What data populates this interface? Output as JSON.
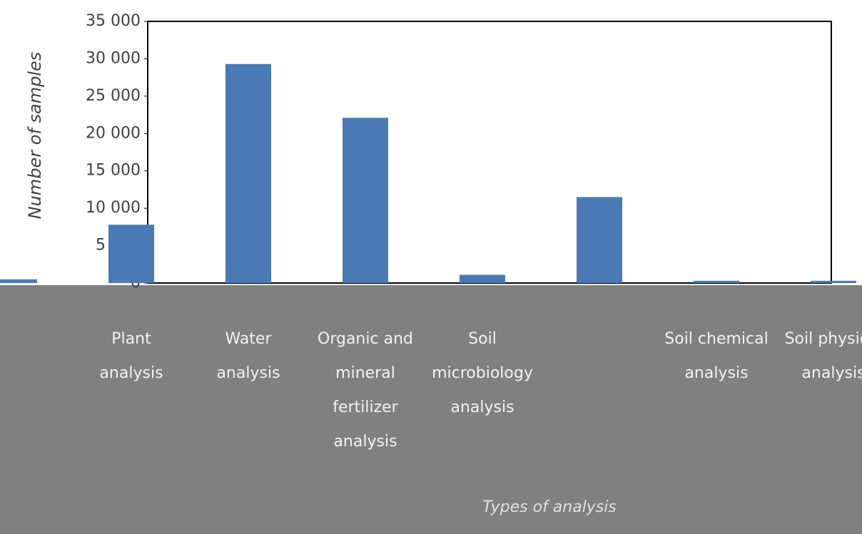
{
  "chart_data": {
    "type": "bar",
    "y_label": "Number of samples",
    "x_label": "Types of analysis",
    "categories": [
      null,
      "Plant analysis",
      "Water analysis",
      "Organic and mineral fertilizer analysis",
      "Soil microbiology analysis",
      null,
      "Soil chemical analysis",
      "Soil physical analysis"
    ],
    "values": [
      500,
      7800,
      29300,
      22100,
      1100,
      11500,
      300,
      300
    ],
    "color": "#4a7ab5",
    "ylim": [
      0,
      35000
    ],
    "yticks": [
      0,
      {
        "value": 5000,
        "label": "5 000"
      },
      {
        "value": 10000,
        "label": "10 000"
      },
      {
        "value": 15000,
        "label": "15 000"
      },
      {
        "value": 20000,
        "label": "20 000"
      },
      {
        "value": 25000,
        "label": "25 000"
      },
      {
        "value": 30000,
        "label": "30 000"
      },
      {
        "value": 35000,
        "label": "35 000"
      }
    ],
    "grid": false
  }
}
